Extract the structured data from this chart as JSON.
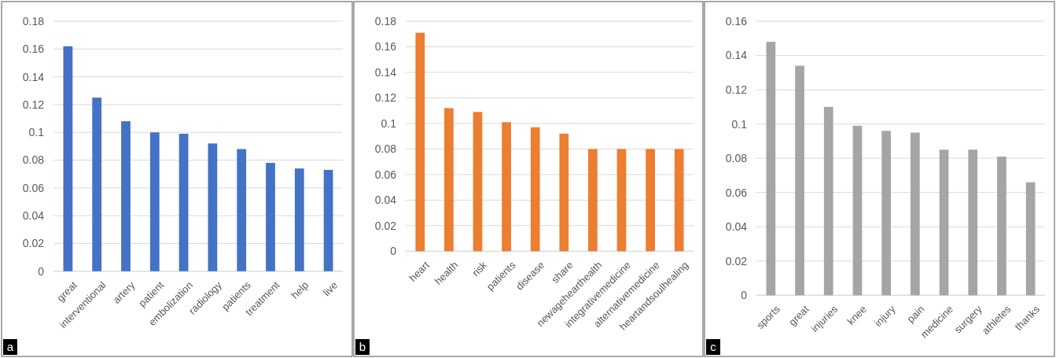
{
  "chart_data": [
    {
      "type": "bar",
      "categories": [
        "great",
        "interventional",
        "artery",
        "patient",
        "embolization",
        "radiology",
        "patients",
        "treatment",
        "help",
        "live"
      ],
      "values": [
        0.162,
        0.125,
        0.108,
        0.1,
        0.099,
        0.092,
        0.088,
        0.078,
        0.074,
        0.073
      ],
      "color": "#4472c4",
      "ylim": [
        0,
        0.18
      ],
      "yticks": [
        0,
        0.02,
        0.04,
        0.06,
        0.08,
        0.1,
        0.12,
        0.14,
        0.16,
        0.18
      ],
      "grid": "y",
      "annotations": [
        "a"
      ]
    },
    {
      "type": "bar",
      "categories": [
        "heart",
        "health",
        "risk",
        "patients",
        "disease",
        "share",
        "newagehearthealth",
        "integrativemedicine",
        "alternativemedicine",
        "heartandsoulhealing"
      ],
      "values": [
        0.171,
        0.112,
        0.109,
        0.101,
        0.097,
        0.092,
        0.08,
        0.08,
        0.08,
        0.08
      ],
      "color": "#ed7d31",
      "ylim": [
        0,
        0.18
      ],
      "yticks": [
        0,
        0.02,
        0.04,
        0.06,
        0.08,
        0.1,
        0.12,
        0.14,
        0.16,
        0.18
      ],
      "grid": "y",
      "annotations": [
        "b"
      ]
    },
    {
      "type": "bar",
      "categories": [
        "sports",
        "great",
        "injuries",
        "knee",
        "injury",
        "pain",
        "medicine",
        "surgery",
        "athletes",
        "thanks"
      ],
      "values": [
        0.148,
        0.134,
        0.11,
        0.099,
        0.096,
        0.095,
        0.085,
        0.085,
        0.081,
        0.066
      ],
      "color": "#a5a5a5",
      "ylim": [
        0,
        0.16
      ],
      "yticks": [
        0,
        0.02,
        0.04,
        0.06,
        0.08,
        0.1,
        0.12,
        0.14,
        0.16
      ],
      "grid": "y",
      "annotations": [
        "c"
      ]
    }
  ]
}
